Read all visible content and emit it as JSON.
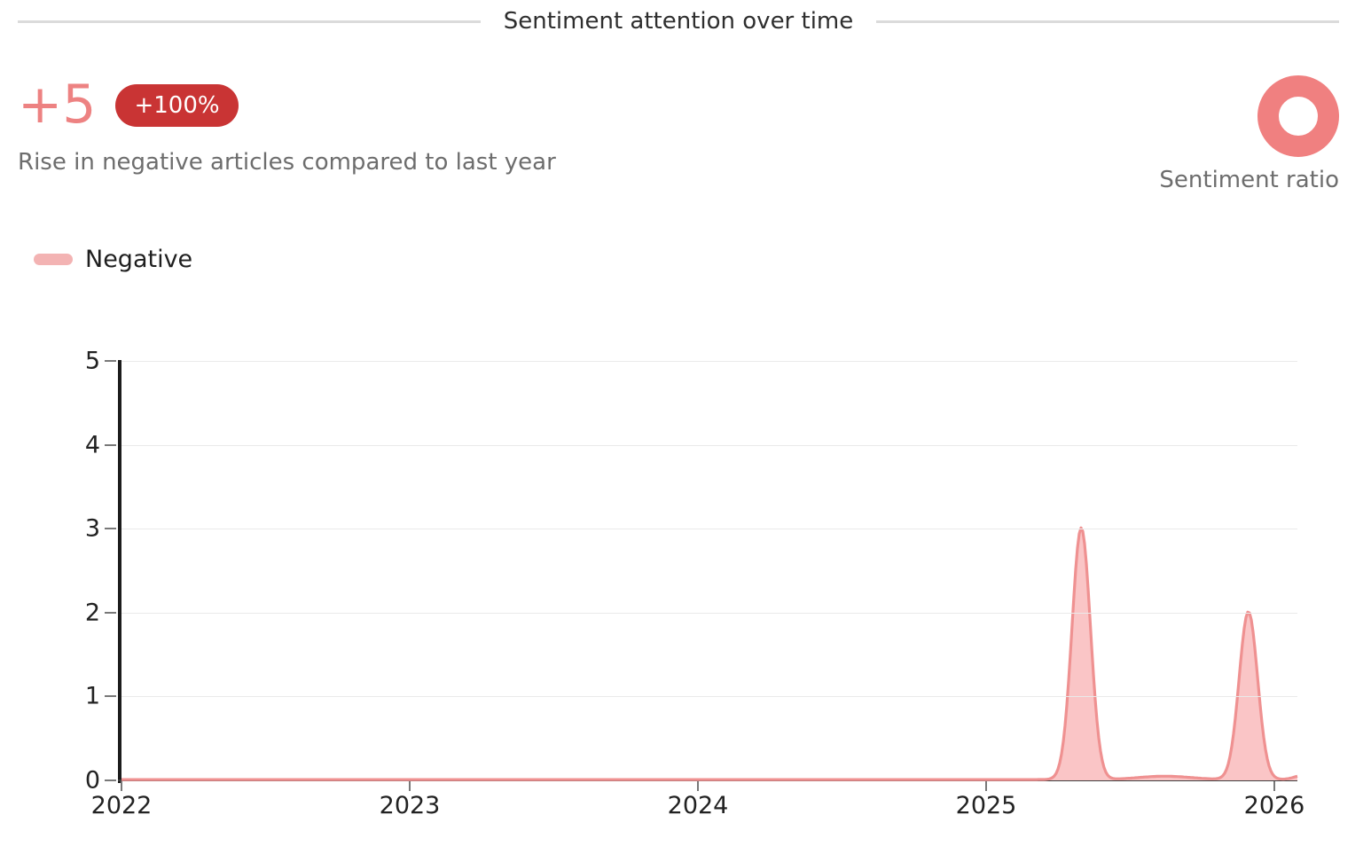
{
  "header": {
    "title": "Sentiment attention over time"
  },
  "stats": {
    "delta_value": "+5",
    "delta_badge": "+100%",
    "description": "Rise in negative articles compared to last year",
    "ratio_label": "Sentiment ratio"
  },
  "legend": {
    "items": [
      {
        "label": "Negative",
        "color": "#f3b3b3"
      }
    ]
  },
  "colors": {
    "delta": "#ed8282",
    "badge_bg": "#c93434",
    "badge_text": "#ffffff",
    "donut_ring": "#f08080",
    "legend_dash": "#f3b3b3",
    "line": "#ef9191",
    "fill": "#fac5c6"
  },
  "chart_data": {
    "type": "area",
    "title": "Sentiment attention over time",
    "xlabel": "",
    "ylabel": "",
    "x_tick_labels": [
      "2022",
      "2023",
      "2024",
      "2025",
      "2026"
    ],
    "x_tick_values": [
      2022,
      2023,
      2024,
      2025,
      2026
    ],
    "y_tick_labels": [
      "0",
      "1",
      "2",
      "3",
      "4",
      "5"
    ],
    "y_tick_values": [
      0,
      1,
      2,
      3,
      4,
      5
    ],
    "xlim": [
      2022,
      2026.08
    ],
    "ylim": [
      0,
      5
    ],
    "grid": true,
    "legend_position": "top-left",
    "series": [
      {
        "name": "Negative",
        "line_color": "#ef9191",
        "fill_color": "#fac5c6",
        "baseline_value": 0.01,
        "peaks": [
          {
            "x": 2025.33,
            "value": 3,
            "sigma": 0.032
          },
          {
            "x": 2025.91,
            "value": 2,
            "sigma": 0.032
          },
          {
            "x": 2025.62,
            "value": 0.04,
            "sigma": 0.09
          },
          {
            "x": 2026.1,
            "value": 0.05,
            "sigma": 0.03
          }
        ]
      }
    ]
  }
}
